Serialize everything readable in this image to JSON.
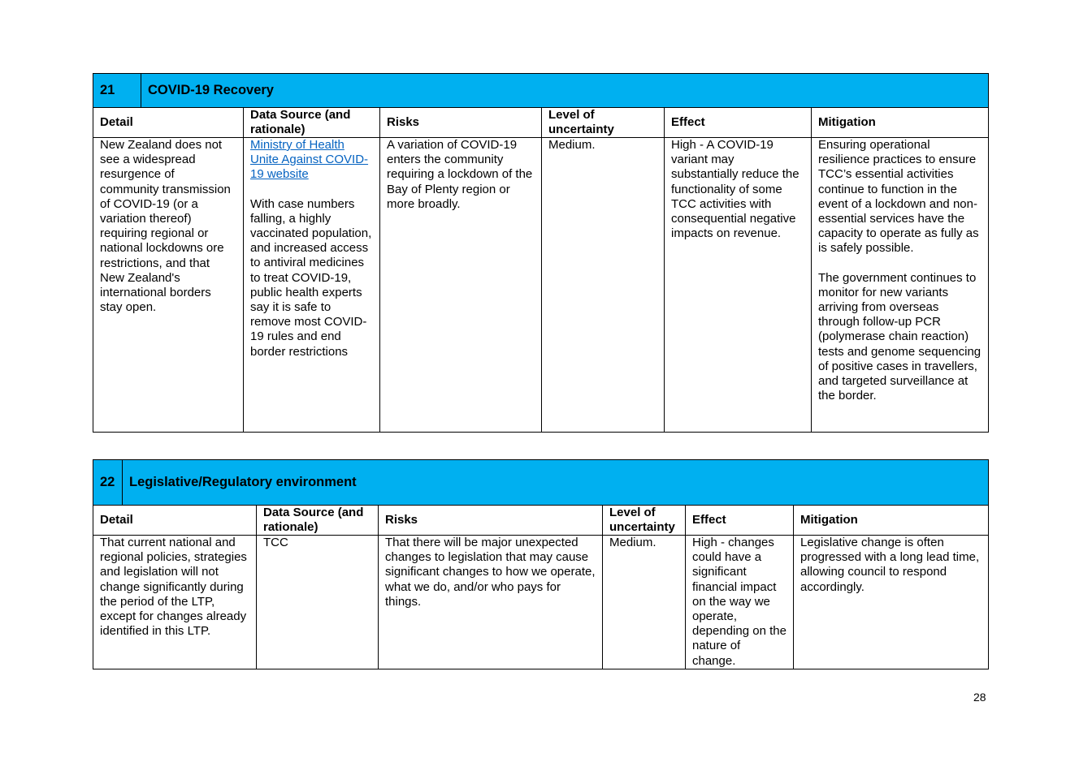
{
  "sections": [
    {
      "number": "21",
      "title": "COVID-19 Recovery",
      "headers": {
        "detail": "Detail",
        "data_source": "Data Source (and rationale)",
        "risks": "Risks",
        "uncertainty": "Level of uncertainty",
        "effect": "Effect",
        "mitigation": "Mitigation"
      },
      "row": {
        "detail": "New Zealand does not see a widespread resurgence of community transmission of COVID-19 (or a variation thereof) requiring regional or national lockdowns ore restrictions, and that New Zealand's international borders stay open.",
        "data_source_link": "Ministry of Health Unite Against COVID-19 website",
        "data_source_text": "With case numbers falling, a highly vaccinated population, and increased access to antiviral medicines to treat COVID-19, public health experts say it is safe to remove most COVID-19 rules and end border restrictions",
        "risks": "A variation of COVID-19 enters the community requiring a lockdown of the Bay of Plenty region or more broadly.",
        "uncertainty": "Medium.",
        "effect": "High - A COVID-19 variant may substantially reduce the functionality of some TCC activities with consequential negative impacts on revenue.",
        "mitigation_1": "Ensuring operational resilience practices to ensure TCC’s essential activities continue to function in the event of a lockdown and non-essential services have the capacity to operate as fully as is safely possible.",
        "mitigation_2": "The government continues to monitor for new variants arriving from overseas through follow-up PCR (polymerase chain reaction) tests and genome sequencing of positive cases in travellers, and targeted surveillance at the border."
      }
    },
    {
      "number": "22",
      "title": "Legislative/Regulatory environment",
      "headers": {
        "detail": "Detail",
        "data_source": "Data Source (and rationale)",
        "risks": "Risks",
        "uncertainty": "Level of uncertainty",
        "effect": "Effect",
        "mitigation": "Mitigation"
      },
      "row": {
        "detail": "That current national and regional policies, strategies and legislation will not change significantly during the period of the LTP, except for changes already identified in this LTP.",
        "data_source": "TCC",
        "risks": "That there will be major unexpected changes to legislation that may cause significant changes to how we operate, what we do, and/or who pays for things.",
        "uncertainty": "Medium.",
        "effect": "High - changes could have a significant financial impact on the way we operate, depending on the nature of change.",
        "mitigation": "Legislative change is often progressed with a long lead time, allowing council to respond accordingly."
      }
    }
  ],
  "page_number": "28"
}
